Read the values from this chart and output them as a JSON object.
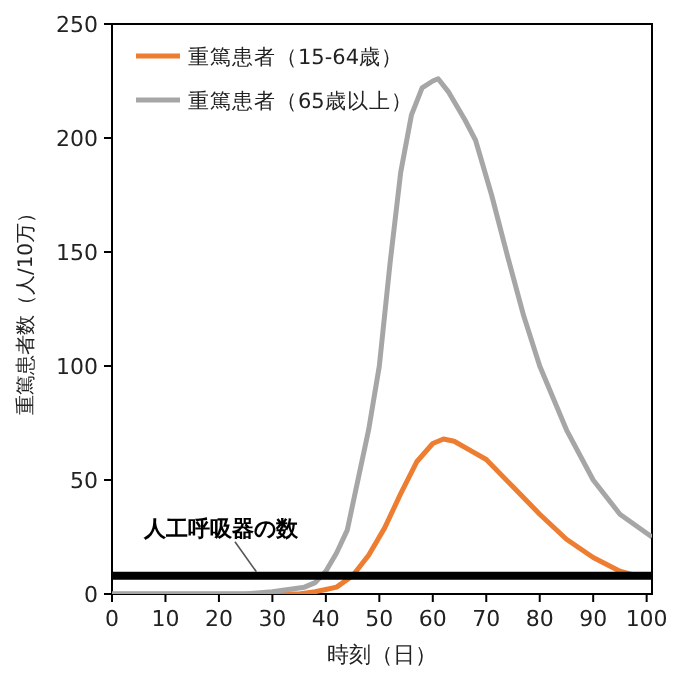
{
  "chart_data": {
    "type": "line",
    "xlabel": "時刻（日）",
    "ylabel": "重篤患者数（人/10万）",
    "xlim": [
      0,
      101
    ],
    "ylim": [
      0,
      250
    ],
    "xticks": [
      0,
      10,
      20,
      30,
      40,
      50,
      60,
      70,
      80,
      90,
      100
    ],
    "yticks": [
      0,
      50,
      100,
      150,
      200,
      250
    ],
    "legend": "top left",
    "grid": false,
    "series": [
      {
        "name": "重篤患者（15-64歳）",
        "color": "#ed7d31",
        "x": [
          0,
          30,
          35,
          38,
          40,
          42,
          45,
          48,
          51,
          54,
          57,
          60,
          62,
          64,
          67,
          70,
          75,
          80,
          85,
          90,
          95,
          98
        ],
        "values": [
          0,
          0,
          0,
          1,
          2,
          3,
          8,
          17,
          29,
          44,
          58,
          66,
          68,
          67,
          63,
          59,
          47,
          35,
          24,
          16,
          10,
          8
        ]
      },
      {
        "name": "重篤患者（65歳以上）",
        "color": "#a6a6a6",
        "x": [
          0,
          25,
          30,
          33,
          36,
          38,
          40,
          42,
          44,
          46,
          48,
          50,
          52,
          54,
          56,
          58,
          60,
          61,
          63,
          66,
          68,
          71,
          74,
          77,
          80,
          85,
          90,
          95,
          101
        ],
        "values": [
          0,
          0,
          1,
          2,
          3,
          5,
          10,
          18,
          28,
          50,
          72,
          100,
          145,
          185,
          210,
          222,
          225,
          226,
          220,
          208,
          199,
          175,
          148,
          122,
          100,
          72,
          50,
          35,
          25
        ]
      }
    ],
    "ref_lines": [
      {
        "axis": "y",
        "value": 8,
        "label": "人工呼吸器の数",
        "color": "#000000"
      }
    ]
  }
}
